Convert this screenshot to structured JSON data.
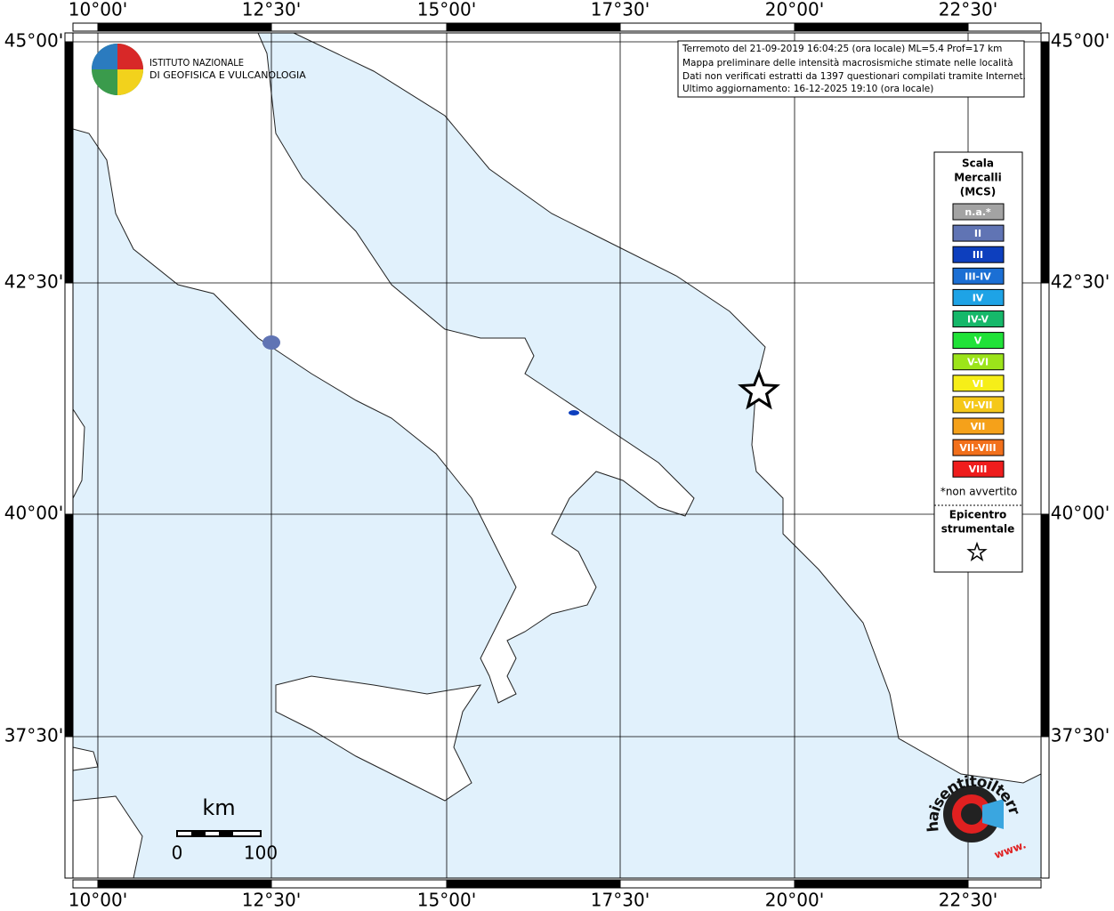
{
  "info_box": {
    "lines": [
      "Terremoto del 21-09-2019 16:04:25 (ora locale) ML=5.4 Prof=17 km",
      "Mappa preliminare delle intensità macrosismiche stimate nelle località",
      "Dati non verificati estratti da 1397 questionari compilati tramite Internet.",
      "Ultimo aggiornamento: 16-12-2025 19:10 (ora locale)"
    ]
  },
  "logo": {
    "lines": [
      "ISTITUTO NAZIONALE",
      "DI GEOFISICA E VULCANOLOGIA"
    ]
  },
  "graticule": {
    "longitudes": [
      "10°00'",
      "12°30'",
      "15°00'",
      "17°30'",
      "20°00'",
      "22°30'"
    ],
    "latitudes": [
      "45°00'",
      "42°30'",
      "40°00'",
      "37°30'"
    ]
  },
  "legend": {
    "title": [
      "Scala",
      "Mercalli",
      "(MCS)"
    ],
    "items": [
      {
        "label": "n.a.*",
        "color": "#a3a3a3"
      },
      {
        "label": "II",
        "color": "#6074b4"
      },
      {
        "label": "III",
        "color": "#0d3fbe"
      },
      {
        "label": "III-IV",
        "color": "#1b6fd4"
      },
      {
        "label": "IV",
        "color": "#1ea3e6"
      },
      {
        "label": "IV-V",
        "color": "#16b86a"
      },
      {
        "label": "V",
        "color": "#20e238"
      },
      {
        "label": "V-VI",
        "color": "#9ce41a"
      },
      {
        "label": "VI",
        "color": "#f6ee18"
      },
      {
        "label": "VI-VII",
        "color": "#f5c819"
      },
      {
        "label": "VII",
        "color": "#f5a11a"
      },
      {
        "label": "VII-VIII",
        "color": "#f2701b"
      },
      {
        "label": "VIII",
        "color": "#ef1d1d"
      }
    ],
    "footnote": "*non avvertito",
    "epicenter": [
      "Epicentro",
      "strumentale"
    ]
  },
  "scale_bar": {
    "unit": "km",
    "labels": [
      "0",
      "100"
    ]
  },
  "watermark": {
    "site": "haisentitoilterremoto.it",
    "prefix": "www."
  }
}
